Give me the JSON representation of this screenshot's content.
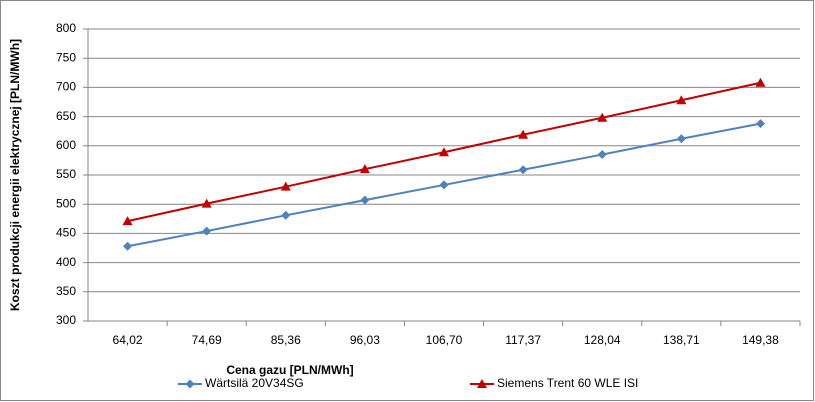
{
  "chart_data": {
    "type": "line",
    "x_label": "Cena gazu [PLN/MWh]",
    "y_label": "Koszt produkcji energii elektrycznej [PLN/MWh]",
    "categories": [
      "64,02",
      "74,69",
      "85,36",
      "96,03",
      "106,70",
      "117,37",
      "128,04",
      "138,71",
      "149,38"
    ],
    "series": [
      {
        "name": "Wärtsilä 20V34SG",
        "color": "#4f81bd",
        "marker": "diamond",
        "values": [
          428,
          454,
          481,
          507,
          533,
          559,
          585,
          612,
          638
        ]
      },
      {
        "name": "Siemens Trent 60 WLE ISI",
        "color": "#c00000",
        "marker": "triangle",
        "values": [
          471,
          501,
          530,
          560,
          589,
          619,
          648,
          678,
          708
        ]
      }
    ],
    "ylim": [
      300,
      800
    ],
    "yticks": [
      300,
      350,
      400,
      450,
      500,
      550,
      600,
      650,
      700,
      750,
      800
    ],
    "grid": true,
    "legend": "bottom"
  }
}
